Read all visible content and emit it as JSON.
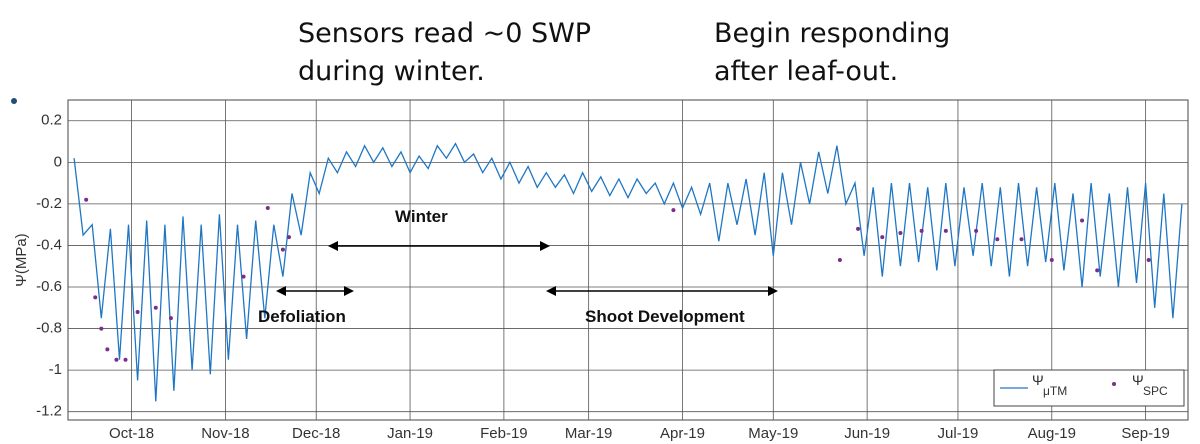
{
  "chart_data": {
    "type": "line",
    "annotations": [
      {
        "lines": [
          "Sensors read ~0 SWP",
          "during winter."
        ]
      },
      {
        "lines": [
          "Begin responding",
          "after leaf-out."
        ]
      },
      {
        "lines": [
          "Winter"
        ]
      },
      {
        "lines": [
          "Defoliation"
        ]
      },
      {
        "lines": [
          "Shoot Development"
        ]
      }
    ],
    "y_label": "Ψ(MPa)",
    "xlim": [
      -7,
      363
    ],
    "ylim": [
      -1.24,
      0.3
    ],
    "xticks": [
      {
        "value": 14,
        "label": "Oct-18"
      },
      {
        "value": 45,
        "label": "Nov-18"
      },
      {
        "value": 75,
        "label": "Dec-18"
      },
      {
        "value": 106,
        "label": "Jan-19"
      },
      {
        "value": 137,
        "label": "Feb-19"
      },
      {
        "value": 165,
        "label": "Mar-19"
      },
      {
        "value": 196,
        "label": "Apr-19"
      },
      {
        "value": 226,
        "label": "May-19"
      },
      {
        "value": 257,
        "label": "Jun-19"
      },
      {
        "value": 287,
        "label": "Jul-19"
      },
      {
        "value": 318,
        "label": "Aug-19"
      },
      {
        "value": 349,
        "label": "Sep-19"
      }
    ],
    "yticks": [
      0.2,
      0,
      -0.2,
      -0.4,
      -0.6,
      -0.8,
      -1,
      -1.2
    ],
    "grid": true,
    "legend": "lower right",
    "series": [
      {
        "name": "Ψ",
        "subscript": "μTM",
        "kind": "line",
        "color": "#1f77c4",
        "x": [
          -5,
          -2,
          1,
          4,
          7,
          10,
          13,
          16,
          19,
          22,
          25,
          28,
          31,
          34,
          37,
          40,
          43,
          46,
          49,
          52,
          55,
          58,
          61,
          64,
          67,
          70,
          73,
          76,
          79,
          82,
          85,
          88,
          91,
          94,
          97,
          100,
          103,
          106,
          109,
          112,
          115,
          118,
          121,
          124,
          127,
          130,
          133,
          136,
          139,
          142,
          145,
          148,
          151,
          154,
          157,
          160,
          163,
          166,
          169,
          172,
          175,
          178,
          181,
          184,
          187,
          190,
          193,
          196,
          199,
          202,
          205,
          208,
          211,
          214,
          217,
          220,
          223,
          226,
          229,
          232,
          235,
          238,
          241,
          244,
          247,
          250,
          253,
          256,
          259,
          262,
          265,
          268,
          271,
          274,
          277,
          280,
          283,
          286,
          289,
          292,
          295,
          298,
          301,
          304,
          307,
          310,
          313,
          316,
          319,
          322,
          325,
          328,
          331,
          334,
          337,
          340,
          343,
          346,
          349,
          352,
          355,
          358,
          361
        ],
        "values": [
          0.02,
          -0.35,
          -0.3,
          -0.75,
          -0.32,
          -0.95,
          -0.3,
          -1.05,
          -0.28,
          -1.15,
          -0.3,
          -1.1,
          -0.26,
          -1.0,
          -0.3,
          -1.02,
          -0.25,
          -0.95,
          -0.3,
          -0.85,
          -0.28,
          -0.75,
          -0.3,
          -0.55,
          -0.15,
          -0.35,
          -0.05,
          -0.15,
          0.02,
          -0.05,
          0.05,
          -0.02,
          0.08,
          0.0,
          0.07,
          -0.02,
          0.05,
          -0.05,
          0.03,
          -0.03,
          0.08,
          0.02,
          0.09,
          0.0,
          0.04,
          -0.05,
          0.02,
          -0.08,
          0.0,
          -0.1,
          -0.02,
          -0.12,
          -0.05,
          -0.12,
          -0.06,
          -0.15,
          -0.05,
          -0.14,
          -0.07,
          -0.16,
          -0.08,
          -0.17,
          -0.08,
          -0.15,
          -0.1,
          -0.2,
          -0.1,
          -0.22,
          -0.12,
          -0.25,
          -0.1,
          -0.38,
          -0.1,
          -0.3,
          -0.08,
          -0.35,
          -0.05,
          -0.45,
          -0.05,
          -0.3,
          0.0,
          -0.2,
          0.05,
          -0.15,
          0.08,
          -0.2,
          -0.1,
          -0.45,
          -0.12,
          -0.55,
          -0.1,
          -0.5,
          -0.1,
          -0.48,
          -0.12,
          -0.52,
          -0.1,
          -0.5,
          -0.12,
          -0.45,
          -0.1,
          -0.5,
          -0.12,
          -0.55,
          -0.1,
          -0.5,
          -0.12,
          -0.48,
          -0.1,
          -0.52,
          -0.15,
          -0.6,
          -0.1,
          -0.55,
          -0.15,
          -0.6,
          -0.12,
          -0.58,
          -0.1,
          -0.7,
          -0.15,
          -0.75,
          -0.2
        ]
      },
      {
        "name": "Ψ",
        "subscript": "SPC",
        "kind": "scatter",
        "color": "#7b2d8e",
        "x": [
          -1,
          2,
          4,
          6,
          9,
          12,
          16,
          22,
          27,
          51,
          59,
          64,
          66,
          193,
          248,
          254,
          262,
          268,
          275,
          283,
          293,
          300,
          308,
          318,
          328,
          333,
          350
        ],
        "values": [
          -0.18,
          -0.65,
          -0.8,
          -0.9,
          -0.95,
          -0.95,
          -0.72,
          -0.7,
          -0.75,
          -0.55,
          -0.22,
          -0.42,
          -0.36,
          -0.23,
          -0.47,
          -0.32,
          -0.36,
          -0.34,
          -0.33,
          -0.33,
          -0.33,
          -0.37,
          -0.37,
          -0.47,
          -0.28,
          -0.52,
          -0.47
        ]
      }
    ]
  }
}
